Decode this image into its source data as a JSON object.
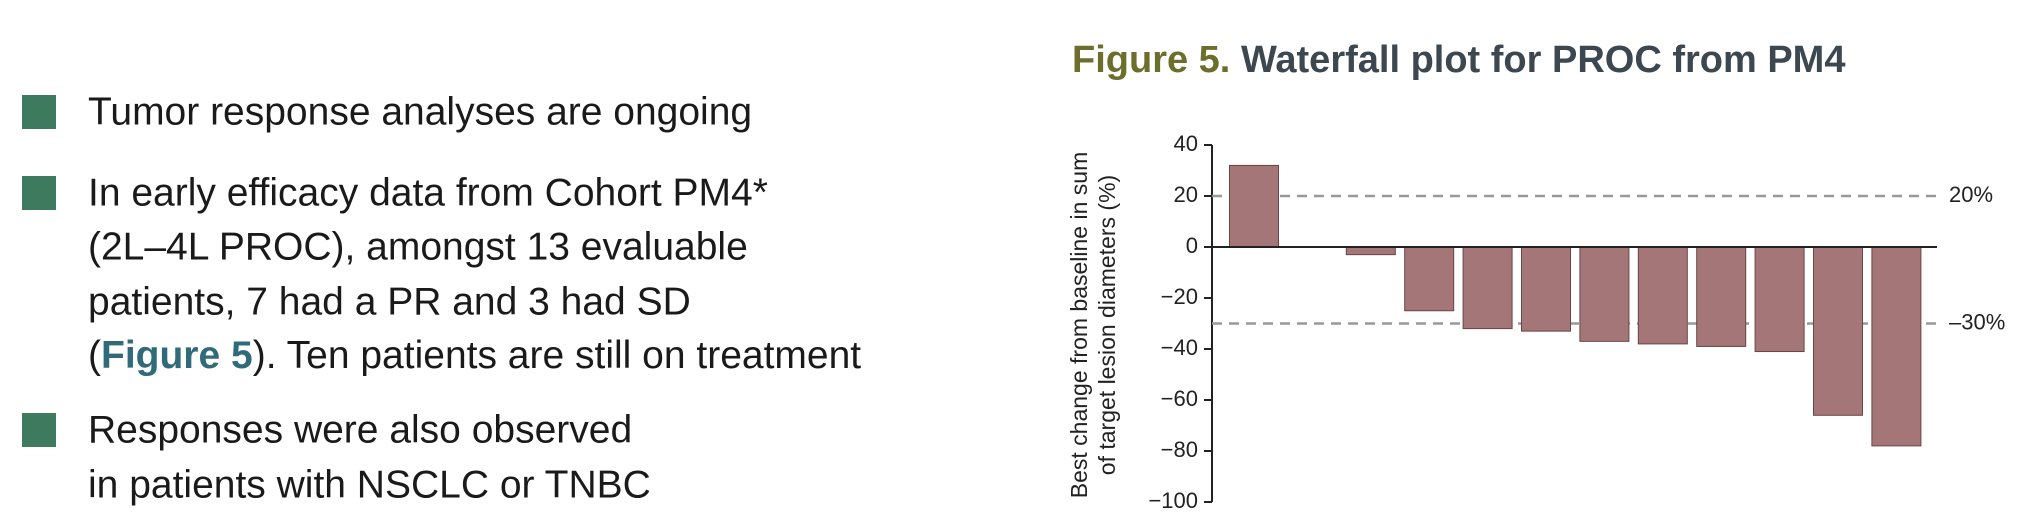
{
  "bullets": [
    {
      "lines": [
        "Tumor response analyses are ongoing"
      ]
    },
    {
      "lines": [
        "In early efficacy data from Cohort PM4*",
        "(2L–4L PROC), amongst 13 evaluable",
        "patients, 7 had a PR and 3 had SD"
      ],
      "ref_before": "(",
      "ref": "Figure 5",
      "ref_after": "). Ten patients are still on treatment"
    },
    {
      "lines": [
        "Responses were also observed",
        "in patients with NSCLC or TNBC"
      ]
    }
  ],
  "chart_data": {
    "type": "bar",
    "title_prefix": "Figure 5.",
    "title": "Waterfall plot for PROC from PM4",
    "ylabel": [
      "Best change from baseline in sum",
      "of target lesion diameters (%)"
    ],
    "values": [
      32,
      0,
      -3,
      -25,
      -32,
      -33,
      -37,
      -38,
      -39,
      -41,
      -66,
      -78
    ],
    "color": "#a47677",
    "ylim": [
      -100,
      40
    ],
    "yticks": [
      {
        "value": -100,
        "label": "−100"
      },
      {
        "value": -80,
        "label": "−80"
      },
      {
        "value": -60,
        "label": "−60"
      },
      {
        "value": -40,
        "label": "−40"
      },
      {
        "value": -20,
        "label": "−20"
      },
      0,
      20,
      40
    ],
    "reference_lines": [
      {
        "value": 20,
        "label": "20%"
      },
      {
        "value": -30,
        "label": "–30%"
      }
    ]
  }
}
